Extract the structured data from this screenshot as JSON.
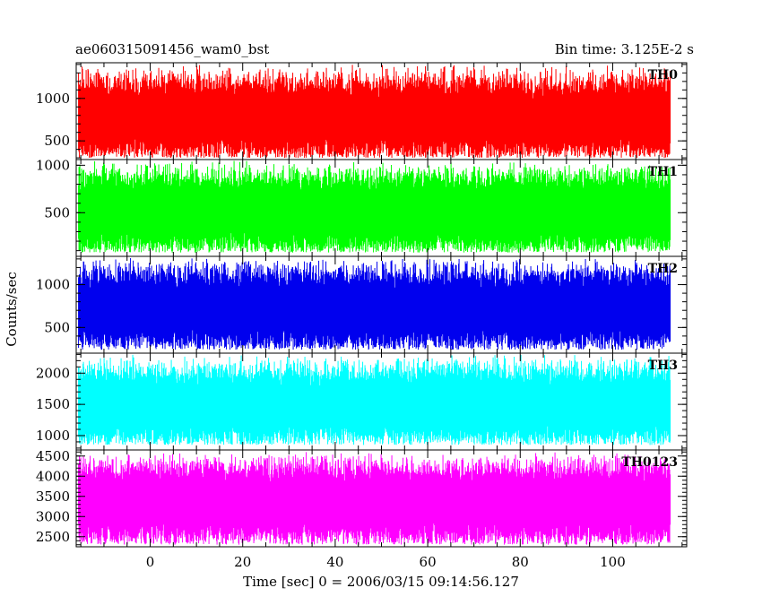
{
  "header": {
    "title": "ae060315091456_wam0_bst",
    "bin_time": "Bin time: 3.125E-2 s"
  },
  "chart_data": {
    "type": "line",
    "title": "ae060315091456_wam0_bst",
    "subtitle": "Bin time: 3.125E-2 s",
    "xlabel": "Time [sec] 0 = 2006/03/15 09:14:56.127",
    "ylabel": "Counts/sec",
    "xlim": [
      -16,
      116
    ],
    "x_data_range": [
      -15.5,
      112.5
    ],
    "xticks": [
      0,
      20,
      40,
      60,
      80,
      100
    ],
    "xtick_labels": [
      "0",
      "20",
      "40",
      "60",
      "80",
      "100"
    ],
    "grid": false,
    "legend": "none",
    "panels": [
      {
        "name": "TH0",
        "color": "#ff0000",
        "ylim": [
          280,
          1420
        ],
        "yticks": [
          500,
          1000
        ],
        "ytick_labels": [
          "500",
          "1000"
        ],
        "mean": 760,
        "low": 300,
        "high": 1400
      },
      {
        "name": "TH1",
        "color": "#00ff00",
        "ylim": [
          40,
          1060
        ],
        "yticks": [
          500,
          1000
        ],
        "ytick_labels": [
          "500",
          "1000"
        ],
        "mean": 520,
        "low": 80,
        "high": 1050
      },
      {
        "name": "TH2",
        "color": "#0000ee",
        "ylim": [
          200,
          1330
        ],
        "yticks": [
          500,
          1000
        ],
        "ytick_labels": [
          "500",
          "1000"
        ],
        "mean": 720,
        "low": 240,
        "high": 1320
      },
      {
        "name": "TH3",
        "color": "#00ffff",
        "ylim": [
          770,
          2320
        ],
        "yticks": [
          1000,
          1500,
          2000
        ],
        "ytick_labels": [
          "1000",
          "1500",
          "2000"
        ],
        "mean": 1480,
        "low": 850,
        "high": 2300
      },
      {
        "name": "TH0123",
        "color": "#ff00ff",
        "ylim": [
          2250,
          4650
        ],
        "yticks": [
          2500,
          3000,
          3500,
          4000,
          4500
        ],
        "ytick_labels": [
          "2500",
          "3000",
          "3500",
          "4000",
          "4500"
        ],
        "mean": 3400,
        "low": 2300,
        "high": 4600
      }
    ]
  }
}
